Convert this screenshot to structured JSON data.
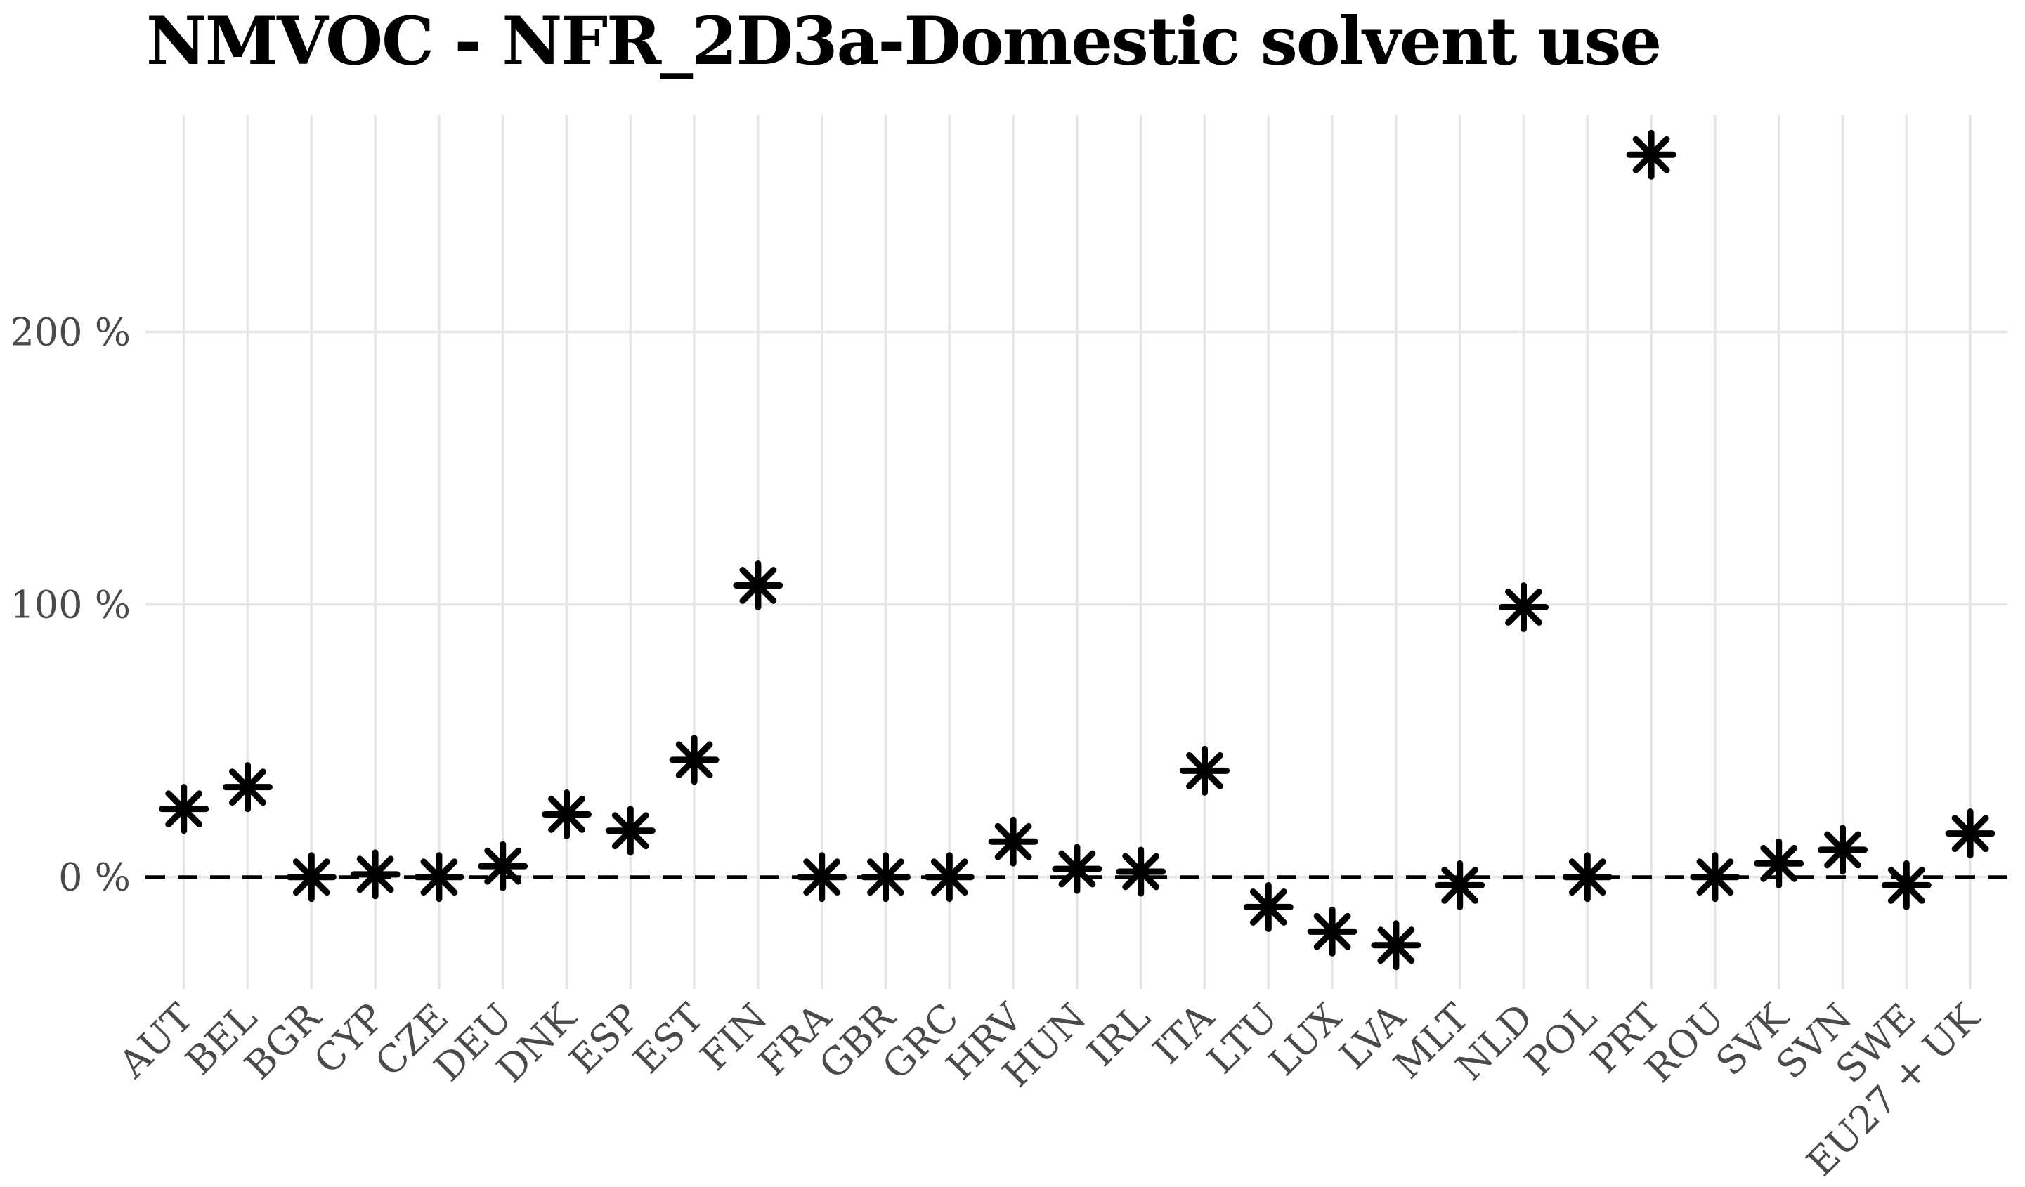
{
  "page": {
    "background": "#ffffff"
  },
  "chart_data": {
    "type": "scatter",
    "title": "NMVOC - NFR_2D3a-Domestic solvent use",
    "categories": [
      "AUT",
      "BEL",
      "BGR",
      "CYP",
      "CZE",
      "DEU",
      "DNK",
      "ESP",
      "EST",
      "FIN",
      "FRA",
      "GBR",
      "GRC",
      "HRV",
      "HUN",
      "IRL",
      "ITA",
      "LTU",
      "LUX",
      "LVA",
      "MLT",
      "NLD",
      "POL",
      "PRT",
      "ROU",
      "SVK",
      "SVN",
      "SWE",
      "EU27 + UK"
    ],
    "values": [
      25,
      33,
      0,
      1,
      0,
      4,
      23,
      17,
      43,
      107,
      0,
      0,
      0,
      13,
      3,
      2,
      39,
      -11,
      -20,
      -25,
      -3,
      99,
      0,
      265,
      0,
      5,
      10,
      -3,
      16
    ],
    "unit": "%",
    "xlabel": "",
    "ylabel": "",
    "y_ticks": [
      {
        "value": 0,
        "label": "0 %"
      },
      {
        "value": 100,
        "label": "100 %"
      },
      {
        "value": 200,
        "label": "200 %"
      }
    ],
    "ylim": [
      -39.5,
      279.5
    ],
    "zero_line": {
      "y": 0,
      "style": "dashed"
    },
    "marker": "asterisk-8ray",
    "grid": {
      "vertical": "per-category",
      "horizontal": "per-100-percent"
    },
    "legend": false,
    "colors": {
      "marker": "#000000",
      "zero_line": "#000000",
      "gridline": "#e6e6e6",
      "tick_label": "#4a4a4a",
      "title": "#000000",
      "background": "#ffffff"
    }
  }
}
